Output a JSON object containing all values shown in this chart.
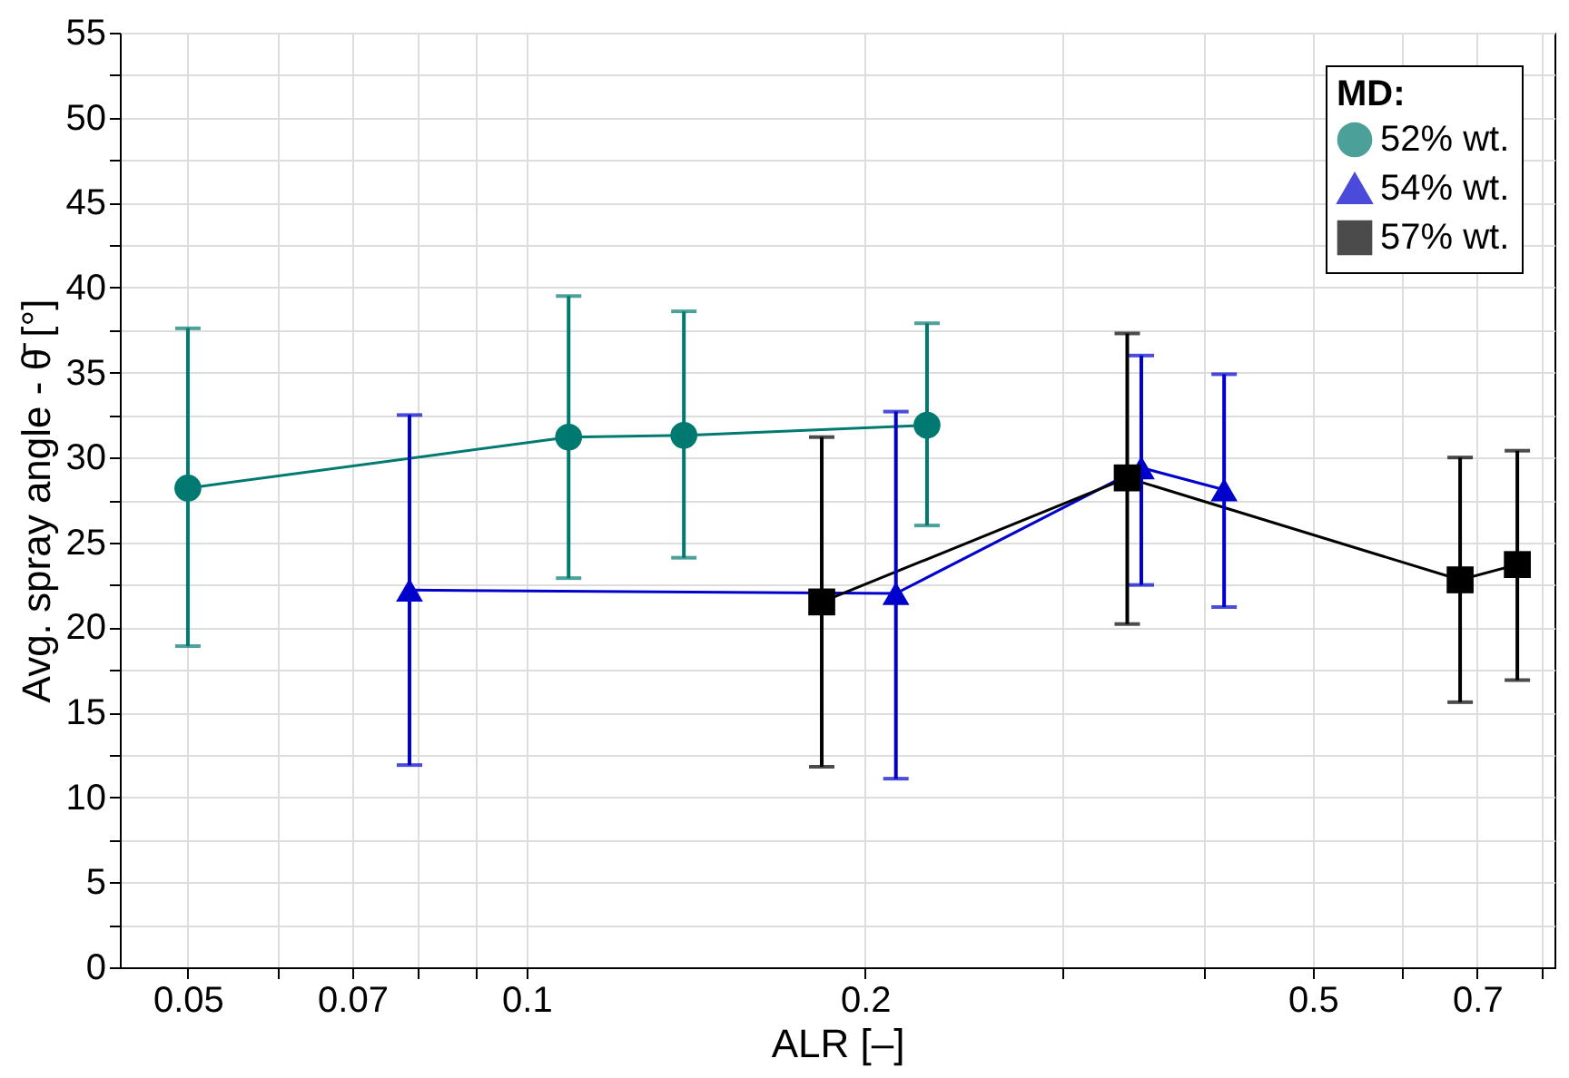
{
  "chart_data": {
    "type": "line",
    "xlabel": "ALR [–]",
    "ylabel": "Avg. spray angle - θ̄ [°]",
    "legend_title": "MD:",
    "legend": "top right",
    "grid": true,
    "log": "x",
    "line_style": "solid",
    "xlim": [
      0.0435,
      0.82
    ],
    "xticks": [
      0.05,
      {
        "value": 0.06,
        "label": null
      },
      0.07,
      {
        "value": 0.08,
        "label": null
      },
      {
        "value": 0.09,
        "label": null
      },
      0.1,
      0.2,
      {
        "value": 0.3,
        "label": null
      },
      {
        "value": 0.4,
        "label": null
      },
      0.5,
      {
        "value": 0.6,
        "label": null
      },
      0.7,
      {
        "value": 0.8,
        "label": null
      }
    ],
    "ylim": [
      0,
      55
    ],
    "yticks": [
      0,
      {
        "value": 2.5,
        "label": null
      },
      5,
      {
        "value": 7.5,
        "label": null
      },
      10,
      {
        "value": 12.5,
        "label": null
      },
      15,
      {
        "value": 17.5,
        "label": null
      },
      20,
      {
        "value": 22.5,
        "label": null
      },
      25,
      {
        "value": 27.5,
        "label": null
      },
      30,
      {
        "value": 32.5,
        "label": null
      },
      35,
      {
        "value": 37.5,
        "label": null
      },
      40,
      {
        "value": 42.5,
        "label": null
      },
      45,
      {
        "value": 47.5,
        "label": null
      },
      50,
      {
        "value": 52.5,
        "label": null
      },
      55
    ],
    "series": [
      {
        "name": "52% wt.",
        "color": "#007a70",
        "marker": "circle",
        "x": [
          0.05,
          0.109,
          0.138,
          0.227
        ],
        "values": [
          28.2,
          31.2,
          31.3,
          31.9
        ],
        "errors": [
          [
            18.9,
            37.6
          ],
          [
            22.9,
            39.5
          ],
          [
            24.1,
            38.6
          ],
          [
            26.0,
            37.9
          ]
        ]
      },
      {
        "name": "54% wt.",
        "color": "#0000cc",
        "marker": "triangle",
        "x": [
          0.0787,
          0.213,
          0.352,
          0.417
        ],
        "values": [
          22.2,
          22.0,
          29.4,
          28.1
        ],
        "errors": [
          [
            11.9,
            32.5
          ],
          [
            11.1,
            32.7
          ],
          [
            22.5,
            36.0
          ],
          [
            21.2,
            34.9
          ]
        ]
      },
      {
        "name": "57% wt.",
        "color": "#000000",
        "marker": "square",
        "x": [
          0.183,
          0.342,
          0.676,
          0.76
        ],
        "values": [
          21.5,
          28.8,
          22.8,
          23.7
        ],
        "errors": [
          [
            11.8,
            31.2
          ],
          [
            20.2,
            37.3
          ],
          [
            15.6,
            30.0
          ],
          [
            16.9,
            30.4
          ]
        ]
      }
    ]
  }
}
